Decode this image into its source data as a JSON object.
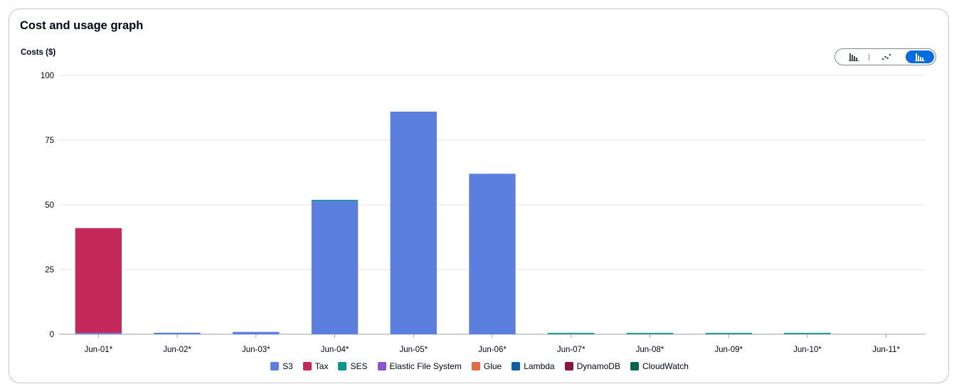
{
  "title": "Cost and usage graph",
  "toggle": {
    "options": [
      {
        "name": "bar-chart-icon",
        "selected": false
      },
      {
        "name": "line-chart-icon",
        "selected": false
      },
      {
        "name": "stacked-bar-chart-icon",
        "selected": true
      }
    ]
  },
  "chart_data": {
    "type": "bar",
    "stacked": true,
    "ylabel": "Costs ($)",
    "xlabel": "",
    "ylim": [
      0,
      100
    ],
    "yticks": [
      0,
      25,
      50,
      75,
      100
    ],
    "grid": true,
    "legend_position": "bottom",
    "categories": [
      "Jun-01*",
      "Jun-02*",
      "Jun-03*",
      "Jun-04*",
      "Jun-05*",
      "Jun-06*",
      "Jun-07*",
      "Jun-08*",
      "Jun-09*",
      "Jun-10*",
      "Jun-11*"
    ],
    "series": [
      {
        "name": "S3",
        "color": "#5a7fdf",
        "values": [
          0.5,
          0.6,
          0.9,
          51.5,
          86,
          62,
          0.1,
          0.1,
          0.1,
          0.1,
          0
        ]
      },
      {
        "name": "Tax",
        "color": "#c5295b",
        "values": [
          40.5,
          0,
          0,
          0,
          0,
          0,
          0,
          0,
          0,
          0,
          0
        ]
      },
      {
        "name": "SES",
        "color": "#06998a",
        "values": [
          0,
          0,
          0,
          0.3,
          0,
          0,
          0.15,
          0.15,
          0.15,
          0.15,
          0
        ]
      },
      {
        "name": "Elastic File System",
        "color": "#8c52d1",
        "values": [
          0,
          0,
          0,
          0,
          0,
          0,
          0,
          0,
          0,
          0,
          0
        ]
      },
      {
        "name": "Glue",
        "color": "#e56b45",
        "values": [
          0,
          0,
          0,
          0,
          0,
          0,
          0,
          0,
          0,
          0,
          0
        ]
      },
      {
        "name": "Lambda",
        "color": "#0e5fa6",
        "values": [
          0,
          0,
          0,
          0,
          0,
          0,
          0,
          0,
          0,
          0,
          0
        ]
      },
      {
        "name": "DynamoDB",
        "color": "#8c1442",
        "values": [
          0,
          0,
          0,
          0,
          0,
          0,
          0,
          0,
          0,
          0,
          0
        ]
      },
      {
        "name": "CloudWatch",
        "color": "#06684f",
        "values": [
          0,
          0,
          0,
          0,
          0,
          0,
          0,
          0,
          0,
          0,
          0
        ]
      }
    ]
  }
}
